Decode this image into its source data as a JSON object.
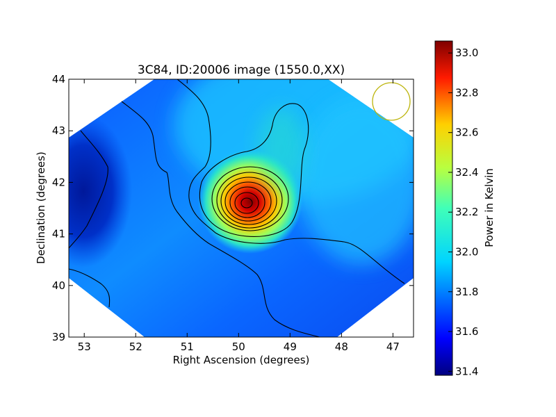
{
  "chart_data": {
    "type": "heatmap",
    "title": "3C84, ID:20006 image (1550.0,XX)",
    "xlabel": "Right Ascension (degrees)",
    "ylabel": "Declination (degrees)",
    "xlim": [
      53.3,
      46.6
    ],
    "ylim": [
      39,
      44
    ],
    "x_ticks": [
      53,
      52,
      51,
      50,
      49,
      48,
      47
    ],
    "y_ticks": [
      39,
      40,
      41,
      42,
      43,
      44
    ],
    "colorbar": {
      "label": "Power in Kelvin",
      "range": [
        31.38,
        33.06
      ],
      "ticks": [
        31.4,
        31.6,
        31.8,
        32.0,
        32.2,
        32.4,
        32.6,
        32.8,
        33.0
      ],
      "colormap": "jet"
    },
    "peak": {
      "ra": 49.85,
      "dec": 41.6,
      "value": 33.05
    },
    "background_level": 31.85,
    "contours": true,
    "beam_marker": {
      "ra": 47.0,
      "dec": 43.55,
      "color": "#bcb40a"
    },
    "grid": false
  }
}
